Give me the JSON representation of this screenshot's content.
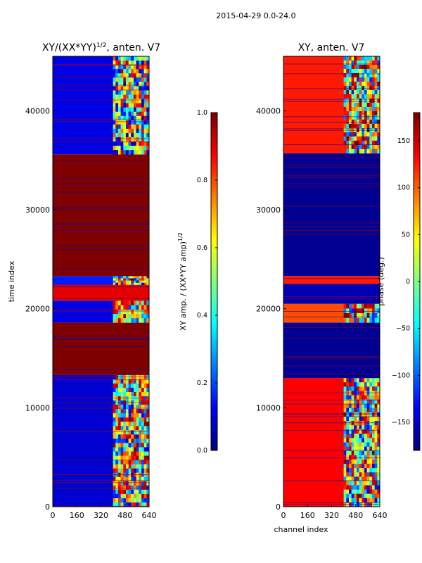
{
  "figure": {
    "suptitle": "2015-04-29 0.0-24.0"
  },
  "colors": {
    "jet": [
      "#00007f",
      "#0000ff",
      "#007fff",
      "#00ffff",
      "#7fff7f",
      "#ffff00",
      "#ff7f00",
      "#ff0000",
      "#7f0000"
    ]
  },
  "chart_data": [
    {
      "id": "amp",
      "type": "heatmap",
      "title_main": "XY/(XX*YY)",
      "title_sup": "1/2",
      "title_tail": ", anten. V7",
      "xlabel": "",
      "ylabel": "time index",
      "xlim": [
        0,
        640
      ],
      "ylim": [
        0,
        45500
      ],
      "xticks": [
        "0",
        "160",
        "320",
        "480",
        "640"
      ],
      "yticks": [
        "0",
        "10000",
        "20000",
        "30000",
        "40000"
      ],
      "ytick_values": [
        0,
        10000,
        20000,
        30000,
        40000
      ],
      "colorbar": {
        "label_main": "XY amp. / (XX*YY amp)",
        "label_sup": "1/2",
        "range": [
          0.0,
          1.0
        ],
        "ticks": [
          0.0,
          0.2,
          0.4,
          0.6,
          0.8,
          1.0
        ],
        "tick_labels": [
          "0.0",
          "0.2",
          "0.4",
          "0.6",
          "0.8",
          "1.0"
        ]
      },
      "bands": [
        {
          "from": 0,
          "to": 13300,
          "base": 0.08,
          "cols": [
            400,
            640
          ],
          "colval": 0.55
        },
        {
          "from": 13300,
          "to": 18600,
          "base": 1.0
        },
        {
          "from": 18600,
          "to": 20800,
          "base": 0.1,
          "cols": [
            400,
            640
          ],
          "colval": 0.6
        },
        {
          "from": 20800,
          "to": 22400,
          "base": 0.9
        },
        {
          "from": 22400,
          "to": 23300,
          "base": 0.15,
          "cols": [
            400,
            640
          ],
          "colval": 0.5
        },
        {
          "from": 23300,
          "to": 35600,
          "base": 1.0
        },
        {
          "from": 35600,
          "to": 45500,
          "base": 0.1,
          "cols": [
            400,
            640
          ],
          "colval": 0.5
        }
      ]
    },
    {
      "id": "phase",
      "type": "heatmap",
      "title_main": "XY, anten. V7",
      "title_sup": "",
      "title_tail": "",
      "xlabel": "channel index",
      "ylabel": "",
      "xlim": [
        0,
        640
      ],
      "ylim": [
        0,
        45500
      ],
      "xticks": [
        "0",
        "160",
        "320",
        "480",
        "640"
      ],
      "yticks": [
        "0",
        "10000",
        "20000",
        "30000",
        "40000"
      ],
      "ytick_values": [
        0,
        10000,
        20000,
        30000,
        40000
      ],
      "colorbar": {
        "label_main": "phase (deg.)",
        "label_sup": "",
        "range": [
          -180,
          180
        ],
        "ticks": [
          -150,
          -100,
          -50,
          0,
          50,
          100,
          150
        ],
        "tick_labels": [
          "−150",
          "−100",
          "−50",
          "0",
          "50",
          "100",
          "150"
        ]
      },
      "bands": [
        {
          "from": 0,
          "to": 13000,
          "base": 0.88,
          "cols": [
            400,
            640
          ],
          "colval": 0.55
        },
        {
          "from": 13000,
          "to": 18600,
          "base": 0.02
        },
        {
          "from": 18600,
          "to": 20500,
          "base": 0.8,
          "cols": [
            400,
            640
          ],
          "colval": 0.6
        },
        {
          "from": 20500,
          "to": 22500,
          "base": 0.05
        },
        {
          "from": 22500,
          "to": 23300,
          "base": 0.85
        },
        {
          "from": 23300,
          "to": 35700,
          "base": 0.02
        },
        {
          "from": 35700,
          "to": 45500,
          "base": 0.85,
          "cols": [
            400,
            640
          ],
          "colval": 0.6
        }
      ]
    }
  ]
}
